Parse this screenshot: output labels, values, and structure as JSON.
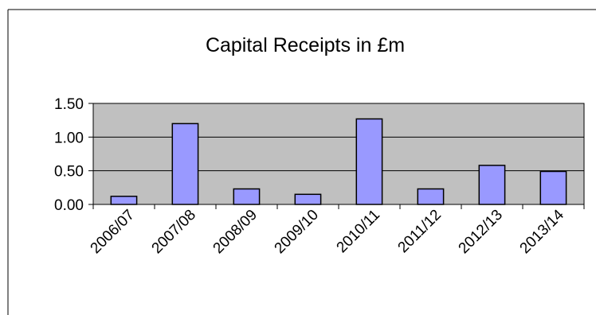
{
  "colors": {
    "plot_background": "#c0c0c0",
    "bar_fill": "#9999ff",
    "bar_stroke": "#000000",
    "gridline": "#000000",
    "frame": "#000000"
  },
  "chart_data": {
    "type": "bar",
    "title": "Capital Receipts in £m",
    "xlabel": "",
    "ylabel": "",
    "categories": [
      "2006/07",
      "2007/08",
      "2008/09",
      "2009/10",
      "2010/11",
      "2011/12",
      "2012/13",
      "2013/14"
    ],
    "values": [
      0.12,
      1.2,
      0.23,
      0.15,
      1.27,
      0.23,
      0.58,
      0.49
    ],
    "ylim": [
      0,
      1.5
    ],
    "yticks": [
      "0.00",
      "0.50",
      "1.00",
      "1.50"
    ],
    "ytick_values": [
      0,
      0.5,
      1.0,
      1.5
    ],
    "grid": true,
    "legend": "none"
  }
}
